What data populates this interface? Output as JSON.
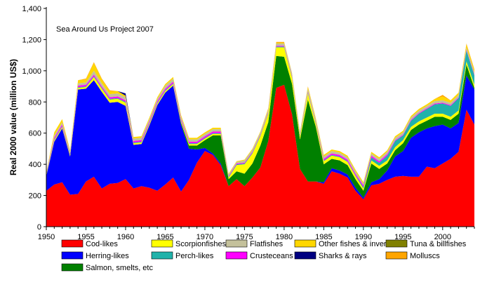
{
  "chart_data": {
    "type": "area",
    "stacked": true,
    "annotation": "Sea Around Us Project 2007",
    "xlabel": "",
    "ylabel": "Real 2000 value (million US$)",
    "xlim": [
      1950,
      2004
    ],
    "ylim": [
      0,
      1400
    ],
    "xticks": [
      1950,
      1955,
      1960,
      1965,
      1970,
      1975,
      1980,
      1985,
      1990,
      1995,
      2000
    ],
    "xtick_labels": [
      "1950",
      "1955",
      "1960",
      "1965",
      "1970",
      "1975",
      "1980",
      "1985",
      "1990",
      "1995",
      "2000"
    ],
    "yticks": [
      0,
      200,
      400,
      600,
      800,
      1000,
      1200,
      1400
    ],
    "ytick_labels": [
      "0",
      "200",
      "400",
      "600",
      "800",
      "1,000",
      "1,200",
      "1,400"
    ],
    "grid": false,
    "legend_position": "bottom",
    "x": [
      1950,
      1951,
      1952,
      1953,
      1954,
      1955,
      1956,
      1957,
      1958,
      1959,
      1960,
      1961,
      1962,
      1963,
      1964,
      1965,
      1966,
      1967,
      1968,
      1969,
      1970,
      1971,
      1972,
      1973,
      1974,
      1975,
      1976,
      1977,
      1978,
      1979,
      1980,
      1981,
      1982,
      1983,
      1984,
      1985,
      1986,
      1987,
      1988,
      1989,
      1990,
      1991,
      1992,
      1993,
      1994,
      1995,
      1996,
      1997,
      1998,
      1999,
      2000,
      2001,
      2002,
      2003,
      2004
    ],
    "series": [
      {
        "name": "Cod-likes",
        "color": "#ff0000",
        "values": [
          230,
          270,
          285,
          205,
          210,
          290,
          320,
          245,
          275,
          280,
          305,
          245,
          260,
          250,
          230,
          270,
          315,
          225,
          300,
          410,
          485,
          460,
          395,
          260,
          305,
          260,
          315,
          380,
          550,
          890,
          910,
          720,
          370,
          290,
          290,
          275,
          355,
          340,
          315,
          230,
          175,
          265,
          275,
          300,
          320,
          325,
          320,
          320,
          385,
          375,
          405,
          435,
          480,
          750,
          655
        ]
      },
      {
        "name": "Herring-likes",
        "color": "#0000ff",
        "values": [
          95,
          275,
          345,
          245,
          670,
          595,
          620,
          620,
          520,
          520,
          470,
          280,
          270,
          400,
          550,
          590,
          590,
          430,
          200,
          85,
          20,
          10,
          10,
          0,
          0,
          0,
          0,
          0,
          0,
          0,
          0,
          0,
          0,
          0,
          0,
          10,
          20,
          20,
          20,
          20,
          10,
          20,
          30,
          60,
          130,
          160,
          250,
          285,
          245,
          270,
          250,
          195,
          185,
          220,
          225
        ]
      },
      {
        "name": "Salmon, smelts, etc",
        "color": "#008000",
        "values": [
          0,
          0,
          0,
          0,
          0,
          0,
          0,
          0,
          0,
          0,
          0,
          0,
          0,
          0,
          0,
          0,
          0,
          10,
          20,
          25,
          50,
          115,
          180,
          45,
          50,
          80,
          90,
          140,
          120,
          205,
          180,
          195,
          190,
          525,
          350,
          115,
          60,
          65,
          60,
          55,
          45,
          120,
          65,
          45,
          40,
          50,
          50,
          50,
          50,
          60,
          50,
          55,
          60,
          70,
          10
        ]
      },
      {
        "name": "Scorpionfishes",
        "color": "#ffff00",
        "values": [
          5,
          10,
          10,
          10,
          10,
          10,
          20,
          20,
          20,
          20,
          20,
          10,
          10,
          10,
          10,
          10,
          10,
          10,
          10,
          10,
          10,
          10,
          10,
          10,
          40,
          60,
          65,
          60,
          55,
          55,
          60,
          40,
          20,
          40,
          20,
          20,
          20,
          20,
          20,
          20,
          15,
          20,
          20,
          20,
          20,
          20,
          20,
          20,
          20,
          20,
          20,
          20,
          20,
          20,
          20
        ]
      },
      {
        "name": "Perch-likes",
        "color": "#20b2aa",
        "values": [
          5,
          5,
          5,
          5,
          5,
          5,
          5,
          5,
          5,
          5,
          5,
          5,
          5,
          5,
          5,
          5,
          5,
          5,
          5,
          5,
          5,
          5,
          5,
          5,
          5,
          5,
          5,
          5,
          5,
          5,
          5,
          5,
          5,
          5,
          5,
          5,
          5,
          5,
          5,
          5,
          10,
          20,
          20,
          30,
          40,
          30,
          40,
          50,
          55,
          60,
          65,
          70,
          80,
          70,
          60
        ]
      },
      {
        "name": "Crusteceans",
        "color": "#ff00ff",
        "values": [
          5,
          10,
          10,
          5,
          10,
          10,
          10,
          10,
          10,
          10,
          10,
          10,
          10,
          10,
          10,
          10,
          10,
          10,
          10,
          10,
          10,
          10,
          10,
          5,
          5,
          5,
          5,
          5,
          5,
          5,
          5,
          5,
          5,
          5,
          5,
          10,
          10,
          10,
          10,
          10,
          10,
          10,
          10,
          10,
          5,
          5,
          5,
          5,
          5,
          5,
          5,
          5,
          5,
          5,
          5
        ]
      },
      {
        "name": "Flatfishes",
        "color": "#c4c19b",
        "values": [
          5,
          15,
          15,
          10,
          15,
          15,
          25,
          20,
          20,
          20,
          20,
          15,
          15,
          15,
          15,
          20,
          20,
          15,
          15,
          15,
          15,
          15,
          15,
          10,
          10,
          15,
          15,
          15,
          15,
          15,
          15,
          15,
          15,
          20,
          15,
          15,
          15,
          15,
          15,
          15,
          10,
          15,
          15,
          15,
          15,
          15,
          15,
          15,
          15,
          15,
          15,
          15,
          15,
          15,
          15
        ]
      },
      {
        "name": "Other fishes & inverts",
        "color": "#ffd700",
        "values": [
          5,
          20,
          20,
          10,
          20,
          20,
          50,
          25,
          20,
          15,
          10,
          10,
          10,
          10,
          10,
          10,
          10,
          10,
          10,
          10,
          10,
          10,
          10,
          5,
          5,
          5,
          5,
          5,
          5,
          5,
          5,
          5,
          5,
          10,
          10,
          10,
          10,
          10,
          10,
          10,
          10,
          10,
          10,
          10,
          10,
          10,
          10,
          10,
          10,
          15,
          25,
          15,
          15,
          20,
          15
        ]
      },
      {
        "name": "Sharks & rays",
        "color": "#000080",
        "values": [
          0,
          0,
          0,
          0,
          0,
          0,
          0,
          0,
          0,
          0,
          15,
          0,
          0,
          0,
          0,
          0,
          0,
          0,
          0,
          0,
          0,
          0,
          0,
          0,
          0,
          0,
          0,
          0,
          0,
          0,
          0,
          0,
          0,
          0,
          0,
          0,
          0,
          0,
          0,
          0,
          0,
          0,
          0,
          0,
          0,
          0,
          0,
          0,
          0,
          0,
          0,
          0,
          0,
          0,
          0
        ]
      },
      {
        "name": "Tuna & billfishes",
        "color": "#808000",
        "values": [
          0,
          0,
          0,
          0,
          0,
          0,
          0,
          0,
          0,
          0,
          0,
          0,
          0,
          0,
          0,
          0,
          0,
          0,
          0,
          0,
          0,
          0,
          0,
          0,
          0,
          0,
          0,
          0,
          0,
          0,
          0,
          0,
          0,
          0,
          0,
          0,
          0,
          0,
          0,
          0,
          0,
          0,
          0,
          0,
          0,
          0,
          0,
          0,
          0,
          0,
          0,
          0,
          0,
          0,
          0
        ]
      },
      {
        "name": "Molluscs",
        "color": "#ffa500",
        "values": [
          0,
          0,
          0,
          0,
          0,
          5,
          5,
          5,
          5,
          0,
          0,
          0,
          0,
          0,
          0,
          0,
          0,
          0,
          0,
          0,
          0,
          0,
          0,
          0,
          0,
          0,
          0,
          0,
          5,
          5,
          5,
          0,
          0,
          5,
          0,
          0,
          0,
          0,
          0,
          0,
          0,
          0,
          0,
          0,
          0,
          0,
          0,
          0,
          0,
          0,
          10,
          0,
          0,
          5,
          5
        ]
      }
    ],
    "legend": [
      {
        "label": "Cod-likes",
        "color": "#ff0000"
      },
      {
        "label": "Scorpionfishes",
        "color": "#ffff00"
      },
      {
        "label": "Flatfishes",
        "color": "#c4c19b"
      },
      {
        "label": "Other fishes & inverts",
        "color": "#ffd700"
      },
      {
        "label": "Tuna & billfishes",
        "color": "#808000"
      },
      {
        "label": "Herring-likes",
        "color": "#0000ff"
      },
      {
        "label": "Perch-likes",
        "color": "#20b2aa"
      },
      {
        "label": "Crusteceans",
        "color": "#ff00ff"
      },
      {
        "label": "Sharks & rays",
        "color": "#000080"
      },
      {
        "label": "Molluscs",
        "color": "#ffa500"
      },
      {
        "label": "Salmon, smelts, etc",
        "color": "#008000"
      }
    ]
  }
}
